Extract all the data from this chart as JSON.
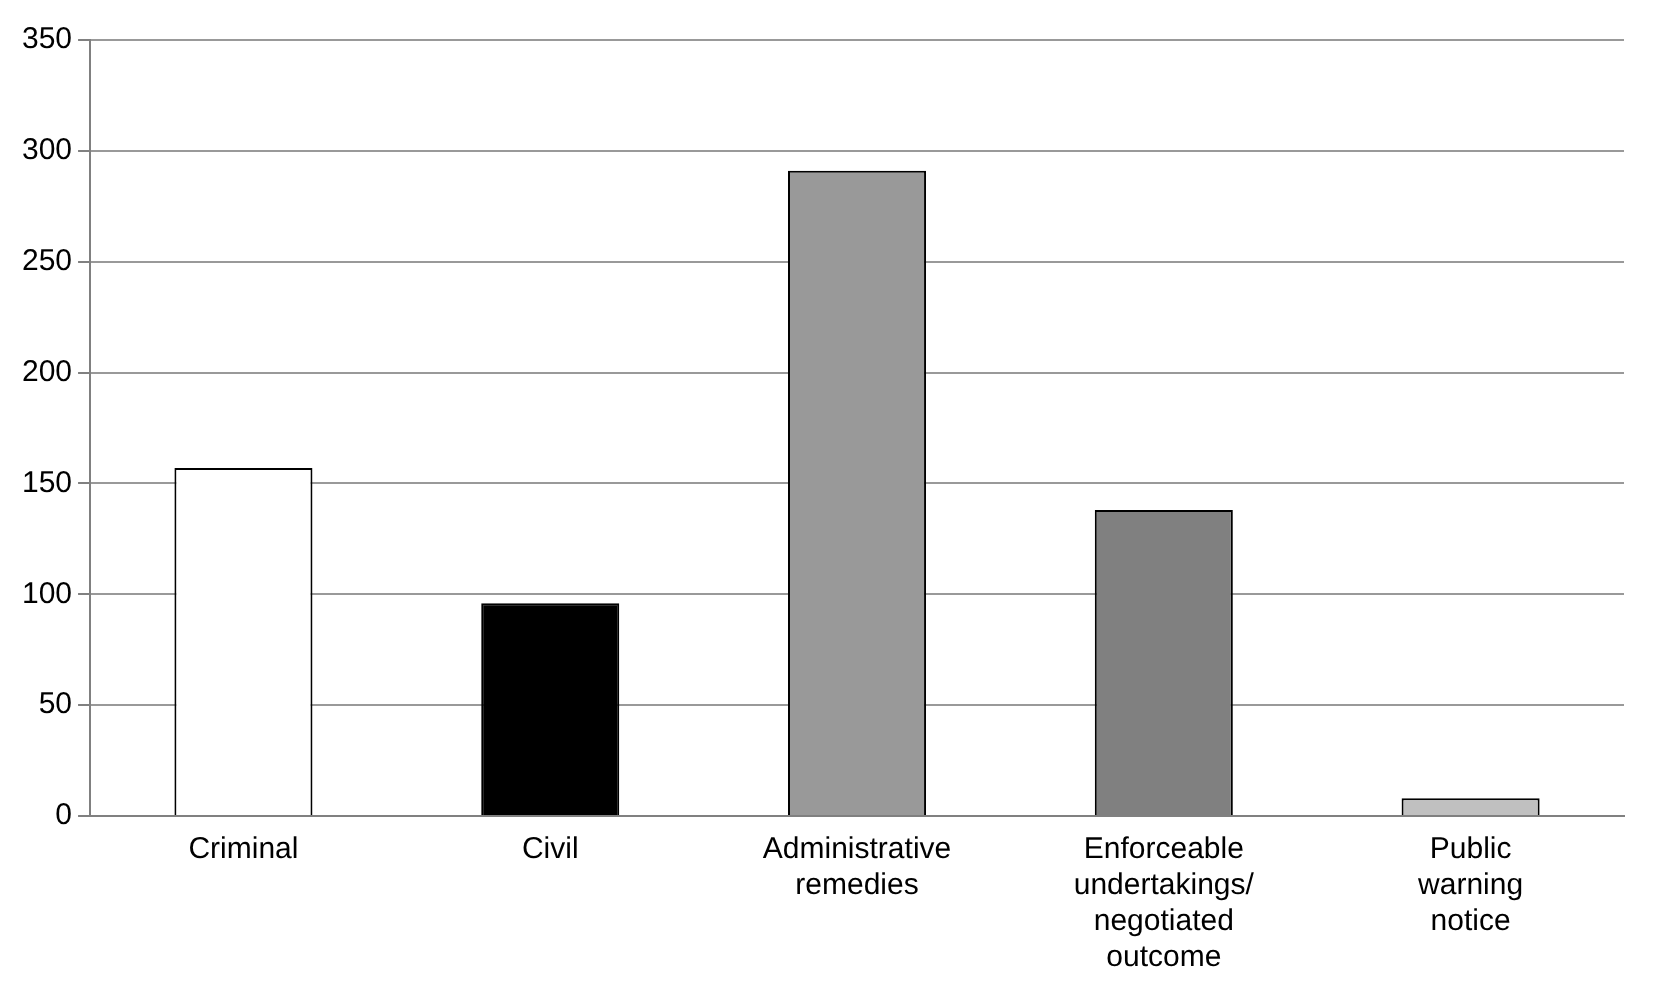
{
  "chart_data": {
    "type": "bar",
    "categories": [
      "Criminal",
      "Civil",
      "Administrative remedies",
      "Enforceable undertakings/ negotiated outcome",
      "Public warning notice"
    ],
    "values": [
      157,
      96,
      291,
      138,
      8
    ],
    "colors": [
      "#ffffff",
      "#000000",
      "#999999",
      "#808080",
      "#c0c0c0"
    ],
    "ylim": [
      0,
      350
    ],
    "yticks": [
      0,
      50,
      100,
      150,
      200,
      250,
      300,
      350
    ],
    "grid": "y",
    "legend": false
  }
}
